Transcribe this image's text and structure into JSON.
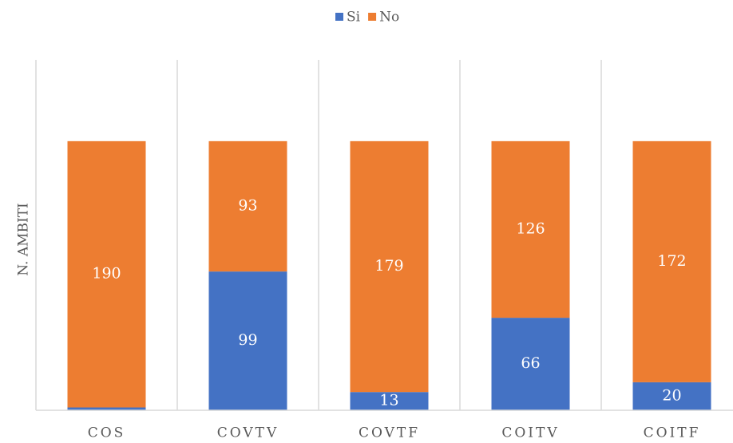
{
  "chart_data": {
    "type": "stacked_bar",
    "y_label": "N. AMBITI",
    "categories": [
      "COS",
      "COVTV",
      "COVTF",
      "COITV",
      "COITF"
    ],
    "series": [
      {
        "name": "Si",
        "color": "#4472c4",
        "values": [
          2,
          99,
          13,
          66,
          20
        ]
      },
      {
        "name": "No",
        "color": "#ed7d31",
        "values": [
          190,
          93,
          179,
          126,
          172
        ]
      }
    ],
    "ylim": [
      0,
      250
    ],
    "legend": "top"
  }
}
